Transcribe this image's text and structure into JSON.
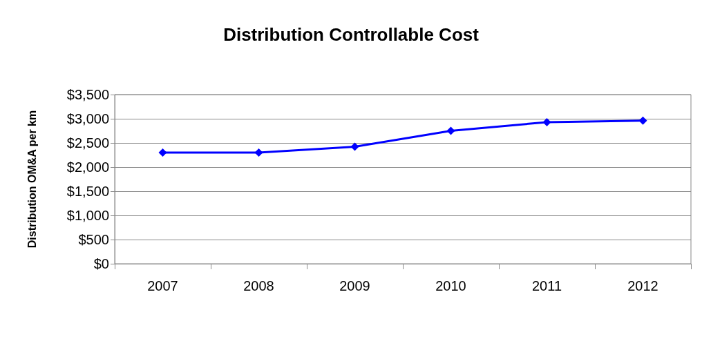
{
  "chart_data": {
    "type": "line",
    "title": "Distribution Controllable Cost",
    "ylabel": "Distribution OM&A per km",
    "categories": [
      "2007",
      "2008",
      "2009",
      "2010",
      "2011",
      "2012"
    ],
    "series": [
      {
        "color": "#0000ff",
        "values": [
          2300,
          2300,
          2420,
          2750,
          2930,
          2960
        ]
      }
    ],
    "ylim": [
      0,
      3500
    ],
    "yticks": [
      {
        "value": 0,
        "label": "$0"
      },
      {
        "value": 500,
        "label": "$500"
      },
      {
        "value": 1000,
        "label": "$1,000"
      },
      {
        "value": 1500,
        "label": "$1,500"
      },
      {
        "value": 2000,
        "label": "$2,000"
      },
      {
        "value": 2500,
        "label": "$2,500"
      },
      {
        "value": 3000,
        "label": "$3,000"
      },
      {
        "value": 3500,
        "label": "$3,500"
      }
    ],
    "grid": "y",
    "marker": "diamond",
    "line_style": "solid"
  }
}
